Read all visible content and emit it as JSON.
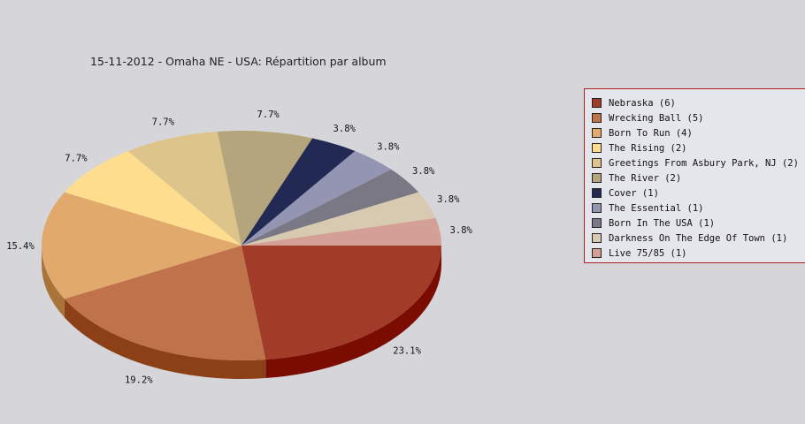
{
  "chart_data": {
    "type": "pie",
    "title": "15-11-2012 - Omaha NE - USA:  Répartition par album",
    "legend_position": "right",
    "slices": [
      {
        "label": "Nebraska (6)",
        "value": 6,
        "percent": "23.1%",
        "color": "#a03c28",
        "side": "#7a0c02"
      },
      {
        "label": "Wrecking Ball (5)",
        "value": 5,
        "percent": "19.2%",
        "color": "#c0734a",
        "side": "#8c4018"
      },
      {
        "label": "Born To Run (4)",
        "value": 4,
        "percent": "15.4%",
        "color": "#e1a96b",
        "side": "#a8743a"
      },
      {
        "label": "The Rising (2)",
        "value": 2,
        "percent": "7.7%",
        "color": "#fedd8e",
        "side": "#c8a860"
      },
      {
        "label": "Greetings From Asbury Park, NJ (2)",
        "value": 2,
        "percent": "7.7%",
        "color": "#dcc48a",
        "side": "#a89660"
      },
      {
        "label": "The River (2)",
        "value": 2,
        "percent": "7.7%",
        "color": "#b5a57c",
        "side": "#857754"
      },
      {
        "label": "Cover (1)",
        "value": 1,
        "percent": "3.8%",
        "color": "#222953",
        "side": "#10142c"
      },
      {
        "label": "The Essential (1)",
        "value": 1,
        "percent": "3.8%",
        "color": "#9395b2",
        "side": "#686a86"
      },
      {
        "label": "Born In The USA (1)",
        "value": 1,
        "percent": "3.8%",
        "color": "#7a7884",
        "side": "#54525c"
      },
      {
        "label": "Darkness On The Edge Of Town (1)",
        "value": 1,
        "percent": "3.8%",
        "color": "#d8cab0",
        "side": "#a89a80"
      },
      {
        "label": "Live 75/85 (1)",
        "value": 1,
        "percent": "3.8%",
        "color": "#d4a096",
        "side": "#a47268"
      }
    ]
  }
}
